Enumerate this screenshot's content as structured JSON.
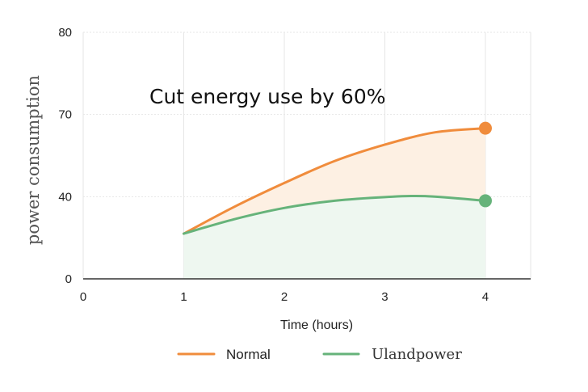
{
  "chart_data": {
    "type": "area",
    "title": "",
    "annotation": "Cut energy use by 60%",
    "xlabel": "Time (hours)",
    "ylabel": "power consumption",
    "xlim": [
      0,
      4.45
    ],
    "ylim": [
      0,
      80
    ],
    "x_ticks": [
      0,
      1,
      2,
      3,
      4
    ],
    "y_ticks": [
      0,
      40,
      70,
      80
    ],
    "y_tick_labels": [
      "0",
      "40",
      "70",
      "80"
    ],
    "grid": true,
    "legend_position": "bottom-center",
    "series": [
      {
        "name": "Normal",
        "color": "#f08c3c",
        "fill": "#fdf0e3",
        "x": [
          1,
          1.5,
          2,
          2.5,
          3,
          3.5,
          4
        ],
        "y": [
          22,
          35,
          45,
          53,
          59,
          63.5,
          65
        ]
      },
      {
        "name": "Ulandpower",
        "color": "#66b37a",
        "fill": "#eef7f0",
        "x": [
          1,
          1.5,
          2,
          2.5,
          3,
          3.4,
          4
        ],
        "y": [
          22,
          29,
          34.5,
          38,
          39.8,
          40.2,
          38
        ]
      }
    ],
    "legend": [
      {
        "name": "Normal",
        "color": "#f08c3c"
      },
      {
        "name": "Ulandpower",
        "color": "#66b37a"
      }
    ]
  }
}
